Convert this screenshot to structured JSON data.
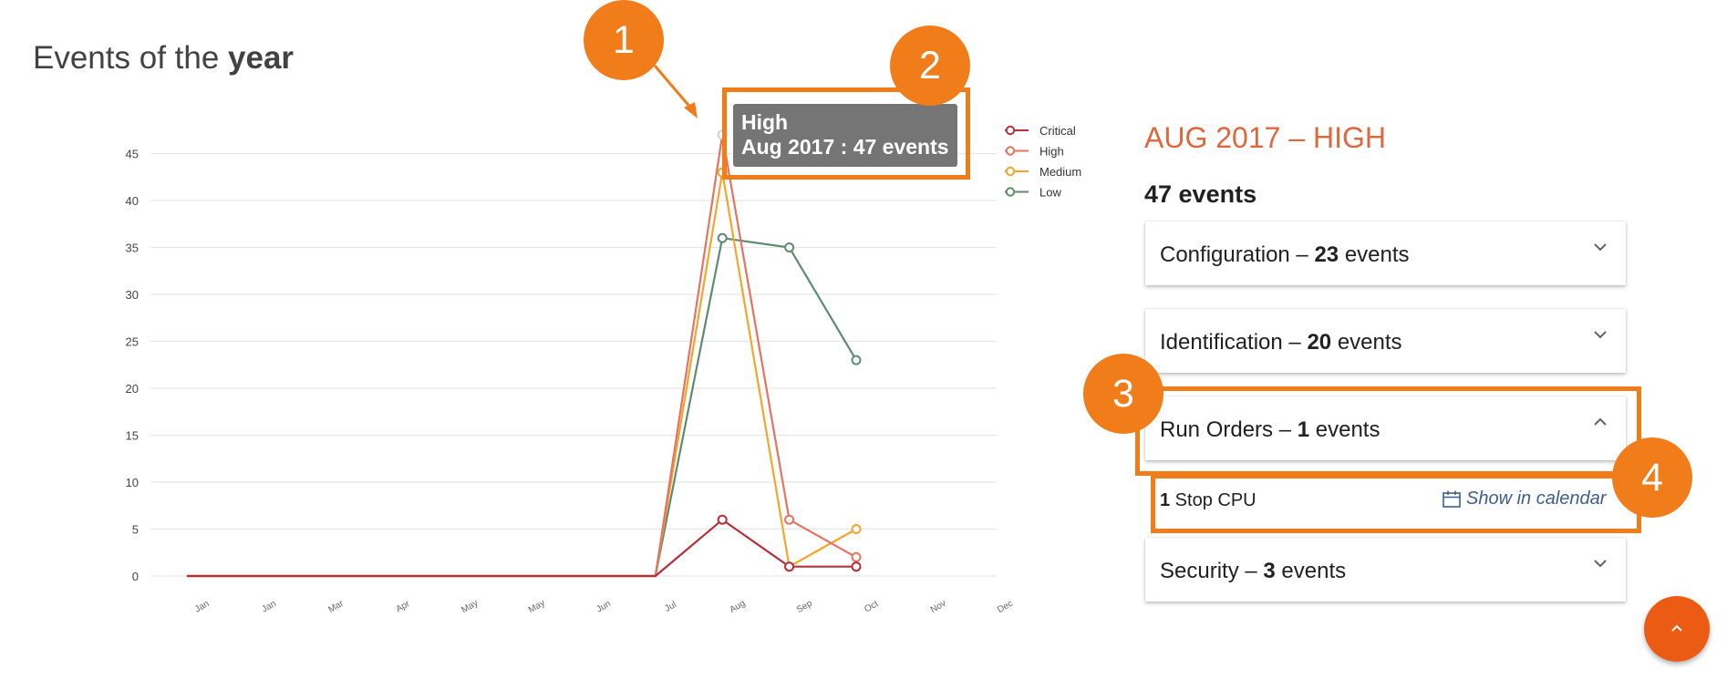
{
  "page": {
    "title_prefix": "Events of the ",
    "title_bold": "year"
  },
  "chart_data": {
    "type": "line",
    "title": "",
    "categories": [
      "Jan",
      "Jan",
      "Mar",
      "Apr",
      "May",
      "May",
      "Jun",
      "Jul",
      "Aug",
      "Sep",
      "Oct",
      "Nov",
      "Dec"
    ],
    "yticks": [
      0,
      5,
      10,
      15,
      20,
      25,
      30,
      35,
      40,
      45
    ],
    "ylim": [
      0,
      45
    ],
    "grid": true,
    "legend_position": "top-right",
    "series": [
      {
        "name": "Critical",
        "color": "#b5303a",
        "values": [
          0,
          0,
          0,
          0,
          0,
          0,
          0,
          0,
          6,
          1,
          1,
          null,
          null
        ],
        "markers": [
          8,
          9,
          10
        ]
      },
      {
        "name": "High",
        "color": "#e57360",
        "values": [
          0,
          0,
          0,
          0,
          0,
          0,
          0,
          0,
          47,
          6,
          2,
          null,
          null
        ],
        "markers": [
          8,
          9,
          10
        ]
      },
      {
        "name": "Medium",
        "color": "#f5a52a",
        "values": [
          0,
          0,
          0,
          0,
          0,
          0,
          0,
          0,
          43,
          1,
          5,
          null,
          null
        ],
        "markers": [
          8,
          9,
          10
        ]
      },
      {
        "name": "Low",
        "color": "#5b8c6e",
        "values": [
          0,
          0,
          0,
          0,
          0,
          0,
          0,
          0,
          36,
          35,
          23,
          null,
          null
        ],
        "markers": [
          8,
          9,
          10
        ]
      }
    ]
  },
  "tooltip": {
    "series": "High",
    "text": "Aug 2017 : 47 events"
  },
  "callouts": [
    "1",
    "2",
    "3",
    "4"
  ],
  "detail": {
    "title": "AUG 2017 – HIGH",
    "total": "47 events",
    "panels": [
      {
        "name": "Configuration",
        "count": "23",
        "suffix": " events",
        "expanded": false
      },
      {
        "name": "Identification",
        "count": "20",
        "suffix": " events",
        "expanded": false
      },
      {
        "name": "Run Orders",
        "count": "1",
        "suffix": " events",
        "expanded": true
      },
      {
        "name": "Security",
        "count": "3",
        "suffix": " events",
        "expanded": false
      }
    ],
    "run_orders_item": {
      "count": "1",
      "label": " Stop CPU"
    },
    "calendar_link": "Show in calendar"
  },
  "colors": {
    "accent": "#f07d1a",
    "detail_title": "#e0673c",
    "fab": "#ec5b13",
    "link": "#3f5f8a"
  },
  "icons": {
    "panel_collapsed": "chevron-down-icon",
    "panel_expanded": "chevron-up-icon",
    "calendar": "calendar-icon",
    "fab": "chevron-up-icon"
  }
}
